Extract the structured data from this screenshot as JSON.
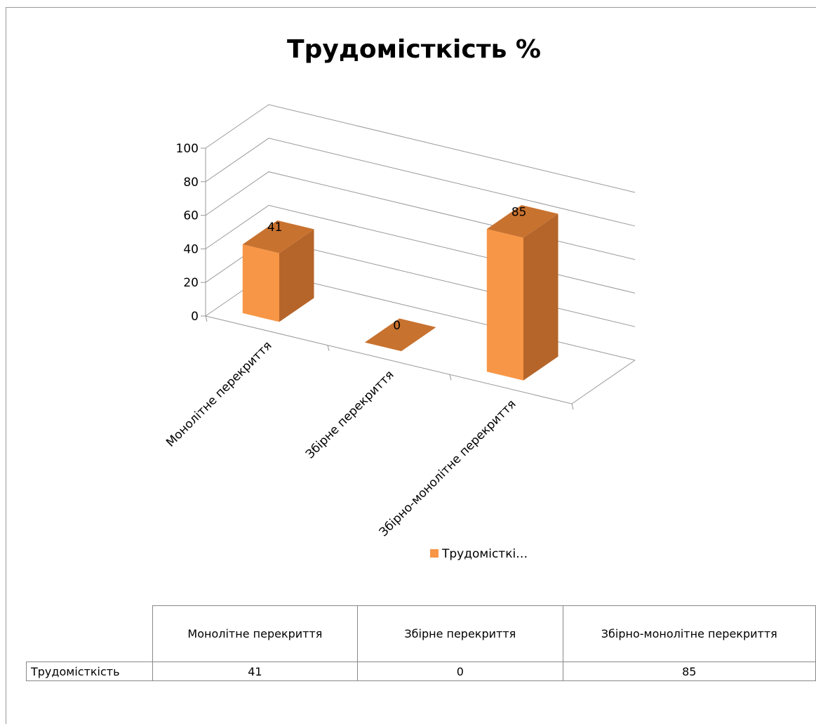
{
  "chart_data": {
    "type": "bar3d",
    "title": "Трудомісткість %",
    "categories": [
      "Монолітне перекриття",
      "Збірне перекриття",
      "Збірно-монолітне перекриття"
    ],
    "series": [
      {
        "name": "Трудомісткість",
        "legend_label": "Трудомісткі…",
        "color": "#f79646",
        "values": [
          41,
          0,
          85
        ]
      }
    ],
    "ylim": [
      0,
      100
    ],
    "yticks": [
      0,
      20,
      40,
      60,
      80,
      100
    ],
    "grid": true,
    "legend": "bottom",
    "data_table": true
  }
}
